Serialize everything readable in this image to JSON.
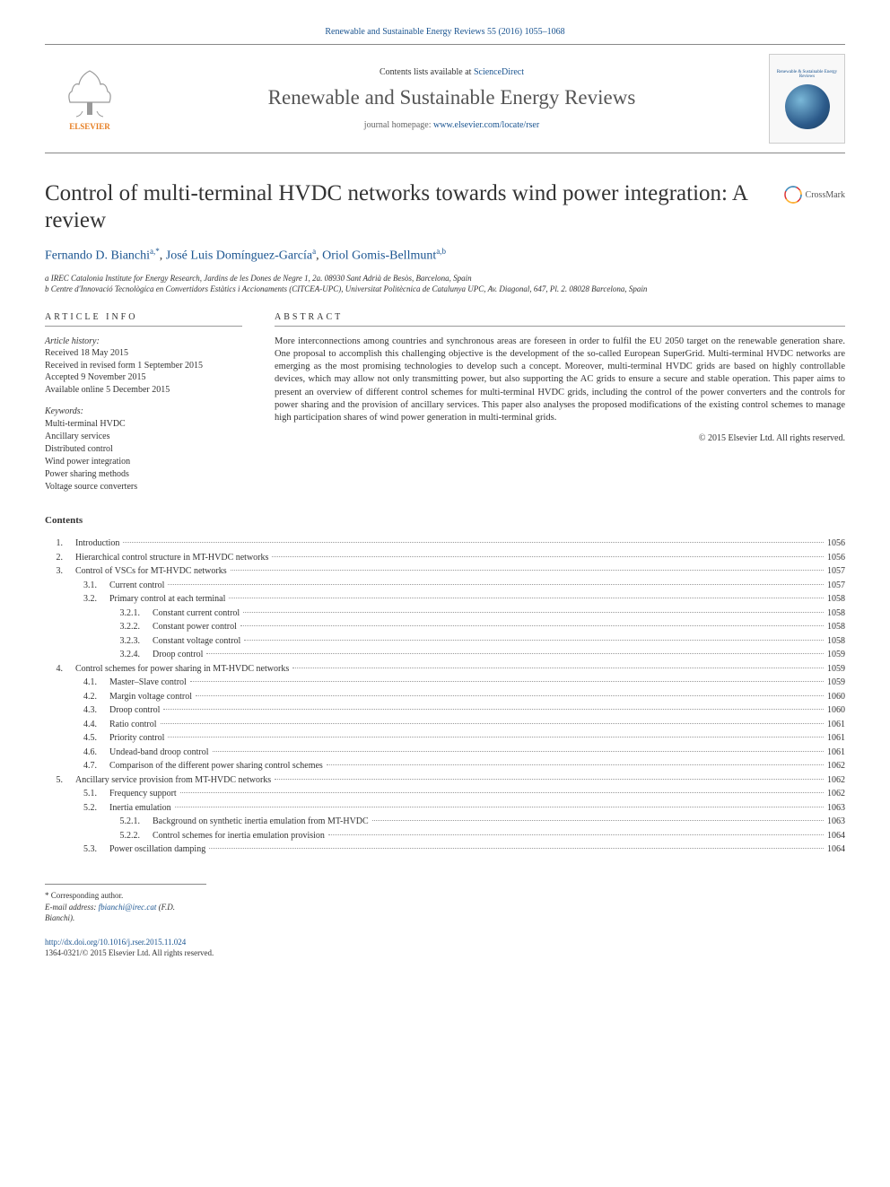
{
  "topLink": "Renewable and Sustainable Energy Reviews 55 (2016) 1055–1068",
  "masthead": {
    "elsevierLabel": "ELSEVIER",
    "contentsListsPrefix": "Contents lists available at ",
    "contentsListsLink": "ScienceDirect",
    "journalName": "Renewable and Sustainable Energy Reviews",
    "homepagePrefix": "journal homepage: ",
    "homepageUrl": "www.elsevier.com/locate/rser",
    "coverText": "Renewable & Sustainable Energy Reviews"
  },
  "crossmark": "CrossMark",
  "title": "Control of multi-terminal HVDC networks towards wind power integration: A review",
  "authors": {
    "a1_name": "Fernando D. Bianchi",
    "a1_sup": "a,*",
    "a2_name": "José Luis Domínguez-García",
    "a2_sup": "a",
    "a3_name": "Oriol Gomis-Bellmunt",
    "a3_sup": "a,b"
  },
  "affiliations": {
    "a": "a IREC Catalonia Institute for Energy Research, Jardins de les Dones de Negre 1, 2a. 08930 Sant Adrià de Besòs, Barcelona, Spain",
    "b": "b Centre d'Innovació Tecnològica en Convertidors Estàtics i Accionaments (CITCEA-UPC), Universitat Politècnica de Catalunya UPC, Av. Diagonal, 647, Pl. 2. 08028 Barcelona, Spain"
  },
  "articleInfoHeader": "article info",
  "history": {
    "label": "Article history:",
    "received": "Received 18 May 2015",
    "revised": "Received in revised form 1 September 2015",
    "accepted": "Accepted 9 November 2015",
    "online": "Available online 5 December 2015"
  },
  "keywordsLabel": "Keywords:",
  "keywords": [
    "Multi-terminal HVDC",
    "Ancillary services",
    "Distributed control",
    "Wind power integration",
    "Power sharing methods",
    "Voltage source converters"
  ],
  "abstractHeader": "abstract",
  "abstract": "More interconnections among countries and synchronous areas are foreseen in order to fulfil the EU 2050 target on the renewable generation share. One proposal to accomplish this challenging objective is the development of the so-called European SuperGrid. Multi-terminal HVDC networks are emerging as the most promising technologies to develop such a concept. Moreover, multi-terminal HVDC grids are based on highly controllable devices, which may allow not only transmitting power, but also supporting the AC grids to ensure a secure and stable operation. This paper aims to present an overview of different control schemes for multi-terminal HVDC grids, including the control of the power converters and the controls for power sharing and the provision of ancillary services. This paper also analyses the proposed modifications of the existing control schemes to manage high participation shares of wind power generation in multi-terminal grids.",
  "copyrightLine": "© 2015 Elsevier Ltd. All rights reserved.",
  "contentsTitle": "Contents",
  "toc": [
    {
      "level": 1,
      "num": "1.",
      "title": "Introduction",
      "page": "1056"
    },
    {
      "level": 1,
      "num": "2.",
      "title": "Hierarchical control structure in MT-HVDC networks",
      "page": "1056"
    },
    {
      "level": 1,
      "num": "3.",
      "title": "Control of VSCs for MT-HVDC networks",
      "page": "1057"
    },
    {
      "level": 2,
      "num": "3.1.",
      "title": "Current control",
      "page": "1057"
    },
    {
      "level": 2,
      "num": "3.2.",
      "title": "Primary control at each terminal",
      "page": "1058"
    },
    {
      "level": 3,
      "num": "3.2.1.",
      "title": "Constant current control",
      "page": "1058"
    },
    {
      "level": 3,
      "num": "3.2.2.",
      "title": "Constant power control",
      "page": "1058"
    },
    {
      "level": 3,
      "num": "3.2.3.",
      "title": "Constant voltage control",
      "page": "1058"
    },
    {
      "level": 3,
      "num": "3.2.4.",
      "title": "Droop control",
      "page": "1059"
    },
    {
      "level": 1,
      "num": "4.",
      "title": "Control schemes for power sharing in MT-HVDC networks",
      "page": "1059"
    },
    {
      "level": 2,
      "num": "4.1.",
      "title": "Master–Slave control",
      "page": "1059"
    },
    {
      "level": 2,
      "num": "4.2.",
      "title": "Margin voltage control",
      "page": "1060"
    },
    {
      "level": 2,
      "num": "4.3.",
      "title": "Droop control",
      "page": "1060"
    },
    {
      "level": 2,
      "num": "4.4.",
      "title": "Ratio control",
      "page": "1061"
    },
    {
      "level": 2,
      "num": "4.5.",
      "title": "Priority control",
      "page": "1061"
    },
    {
      "level": 2,
      "num": "4.6.",
      "title": "Undead-band droop control",
      "page": "1061"
    },
    {
      "level": 2,
      "num": "4.7.",
      "title": "Comparison of the different power sharing control schemes",
      "page": "1062"
    },
    {
      "level": 1,
      "num": "5.",
      "title": "Ancillary service provision from MT-HVDC networks",
      "page": "1062"
    },
    {
      "level": 2,
      "num": "5.1.",
      "title": "Frequency support",
      "page": "1062"
    },
    {
      "level": 2,
      "num": "5.2.",
      "title": "Inertia emulation",
      "page": "1063"
    },
    {
      "level": 3,
      "num": "5.2.1.",
      "title": "Background on synthetic inertia emulation from MT-HVDC",
      "page": "1063"
    },
    {
      "level": 3,
      "num": "5.2.2.",
      "title": "Control schemes for inertia emulation provision",
      "page": "1064"
    },
    {
      "level": 2,
      "num": "5.3.",
      "title": "Power oscillation damping",
      "page": "1064"
    }
  ],
  "footer": {
    "correspondingMark": "* Corresponding author.",
    "emailLabel": "E-mail address: ",
    "email": "fbianchi@irec.cat",
    "emailSuffix": " (F.D. Bianchi).",
    "doi": "http://dx.doi.org/10.1016/j.rser.2015.11.024",
    "issn": "1364-0321/© 2015 Elsevier Ltd. All rights reserved."
  },
  "colors": {
    "link": "#1a5490",
    "elsevier": "#e67e22",
    "text": "#333333",
    "border": "#888888",
    "dotted": "#999999"
  },
  "fontSizes": {
    "title": 25,
    "journalName": 23,
    "authors": 14,
    "abstract": 10.5,
    "sectionHeader": 10,
    "toc": 10,
    "history": 10,
    "affiliations": 9,
    "footer": 9
  }
}
